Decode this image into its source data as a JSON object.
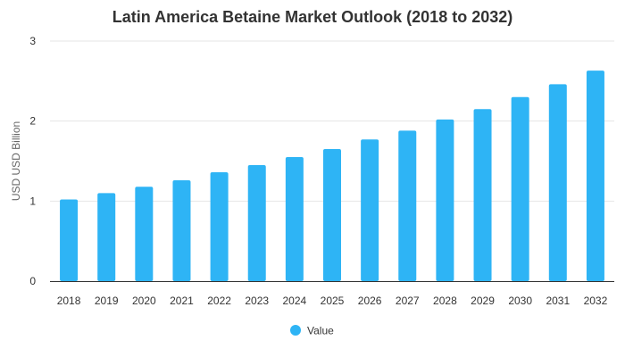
{
  "chart_data": {
    "type": "bar",
    "title": "Latin America Betaine Market Outlook (2018 to 2032)",
    "ylabel": "USD USD Billion",
    "xlabel": "",
    "categories": [
      "2018",
      "2019",
      "2020",
      "2021",
      "2022",
      "2023",
      "2024",
      "2025",
      "2026",
      "2027",
      "2028",
      "2029",
      "2030",
      "2031",
      "2032"
    ],
    "series": [
      {
        "name": "Value",
        "values": [
          1.02,
          1.1,
          1.18,
          1.26,
          1.36,
          1.45,
          1.55,
          1.65,
          1.77,
          1.88,
          2.02,
          2.15,
          2.3,
          2.46,
          2.63
        ]
      }
    ],
    "ylim": [
      0,
      3
    ],
    "yticks": [
      "0",
      "1",
      "2",
      "3"
    ],
    "grid": true,
    "legend_position": "bottom",
    "colors": {
      "bar": "#2eb4f5",
      "grid": "#e6e6e6",
      "axis": "#333333"
    }
  }
}
